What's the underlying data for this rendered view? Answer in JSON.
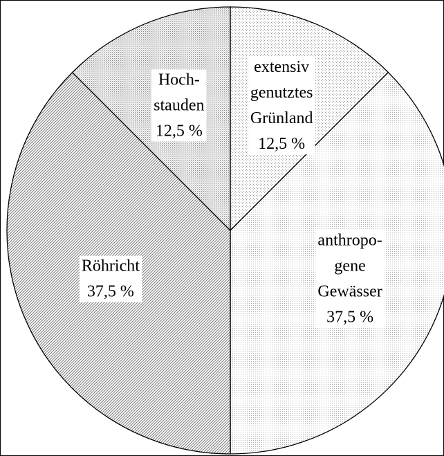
{
  "chart_data": {
    "type": "pie",
    "categories": [
      [
        "extensiv",
        "genutztes",
        "Grünland"
      ],
      [
        "anthropo-",
        "gene",
        "Gewässer"
      ],
      [
        "Röhricht"
      ],
      [
        "Hoch-",
        "stauden"
      ]
    ],
    "values": [
      12.5,
      37.5,
      37.5,
      12.5
    ],
    "value_labels": [
      "12,5 %",
      "37,5 %",
      "37,5 %",
      "12,5 %"
    ],
    "colors": [
      "#9a9a9a",
      "#b0b0b0",
      "#7a7a7a",
      "#8a8a8a"
    ]
  }
}
